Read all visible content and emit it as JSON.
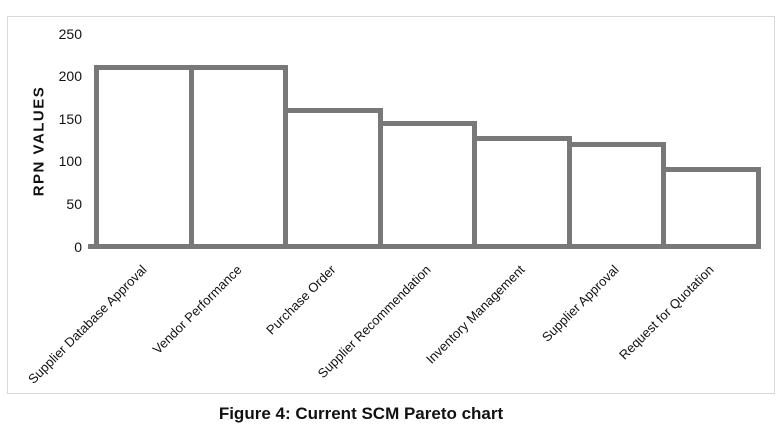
{
  "figure": {
    "caption": "Figure 4: Current SCM Pareto chart"
  },
  "chart_data": {
    "type": "bar",
    "title": "",
    "xlabel": "",
    "ylabel": "RPN VALUES",
    "categories": [
      "Supplier Database Approval",
      "Vendor Performance",
      "Purchase Order",
      "Supplier Recommendation",
      "Inventory Management",
      "Supplier Approval",
      "Request for Quotation"
    ],
    "values": [
      210,
      210,
      160,
      144,
      127,
      120,
      90
    ],
    "ylim": [
      0,
      250
    ],
    "yticks": [
      0,
      50,
      100,
      150,
      200,
      250
    ],
    "grid": "off",
    "legend": "none",
    "bar_fill": "#ffffff",
    "bar_border": "#787878",
    "frame_border": "#d9d9d9",
    "category_label_rotation_deg": -45
  }
}
